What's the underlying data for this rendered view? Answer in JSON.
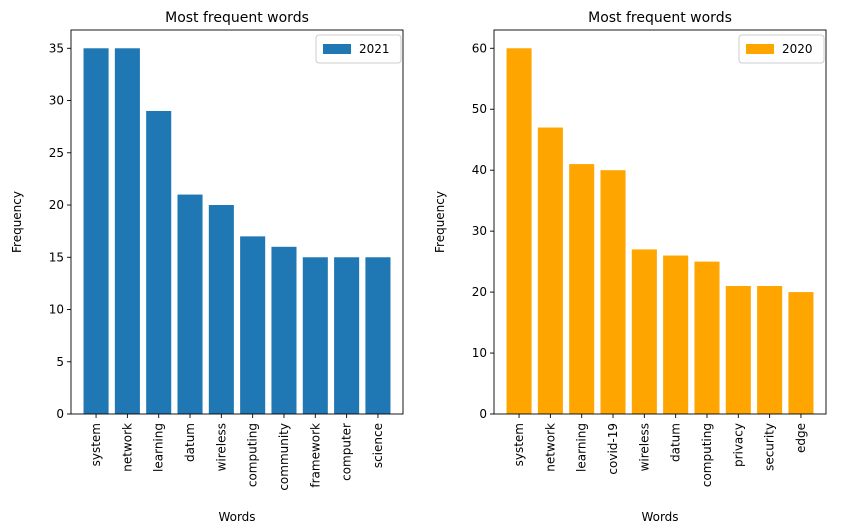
{
  "chart_data": [
    {
      "type": "bar",
      "title": "Most frequent words",
      "xlabel": "Words",
      "ylabel": "Frequency",
      "categories": [
        "system",
        "network",
        "learning",
        "datum",
        "wireless",
        "computing",
        "community",
        "framework",
        "computer",
        "science"
      ],
      "series": [
        {
          "name": "2021",
          "values": [
            35,
            35,
            29,
            21,
            20,
            17,
            16,
            15,
            15,
            15
          ],
          "color": "#1f77b4"
        }
      ],
      "ylim": [
        0,
        36.75
      ],
      "yticks": [
        0,
        5,
        10,
        15,
        20,
        25,
        30,
        35
      ],
      "legend_position": "top-right",
      "grid": false
    },
    {
      "type": "bar",
      "title": "Most frequent words",
      "xlabel": "Words",
      "ylabel": "Frequency",
      "categories": [
        "system",
        "network",
        "learning",
        "covid-19",
        "wireless",
        "datum",
        "computing",
        "privacy",
        "security",
        "edge"
      ],
      "series": [
        {
          "name": "2020",
          "values": [
            60,
            47,
            41,
            40,
            27,
            26,
            25,
            21,
            21,
            20
          ],
          "color": "#ffa500"
        }
      ],
      "ylim": [
        0,
        63
      ],
      "yticks": [
        0,
        10,
        20,
        30,
        40,
        50,
        60
      ],
      "legend_position": "top-right",
      "grid": false
    }
  ]
}
